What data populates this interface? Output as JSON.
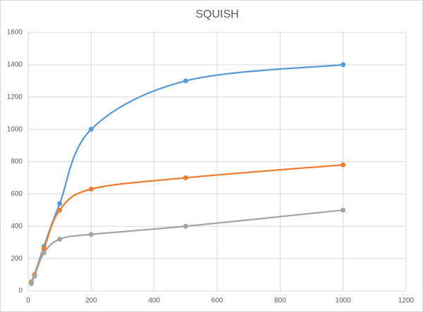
{
  "chart_data": {
    "type": "scatter",
    "title": "SQUISH",
    "smooth": true,
    "grid": true,
    "x": [
      10,
      20,
      50,
      100,
      200,
      500,
      1000
    ],
    "series": [
      {
        "color": "#5b9bd5",
        "values": [
          50,
          100,
          275,
          540,
          1000,
          1300,
          1400
        ]
      },
      {
        "color": "#ed7d31",
        "values": [
          55,
          100,
          260,
          500,
          630,
          700,
          780
        ]
      },
      {
        "color": "#a5a5a5",
        "values": [
          45,
          90,
          235,
          320,
          350,
          400,
          500
        ]
      }
    ],
    "xlim": [
      0,
      1200
    ],
    "xticks": [
      0,
      200,
      400,
      600,
      800,
      1000,
      1200
    ],
    "ylim": [
      0,
      1600
    ],
    "yticks": [
      0,
      200,
      400,
      600,
      800,
      1000,
      1200,
      1400,
      1600
    ]
  }
}
